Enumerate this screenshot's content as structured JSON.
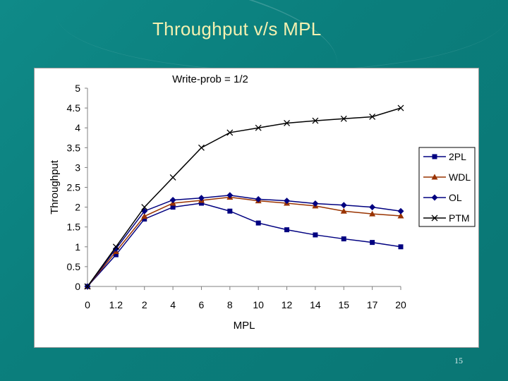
{
  "slide": {
    "title": "Throughput v/s MPL",
    "page_number": "15"
  },
  "colors": {
    "background": "#0b7f7d",
    "title": "#f3f0b0",
    "2PL": "#000080",
    "WDL": "#993300",
    "OL": "#000080",
    "PTM": "#000000"
  },
  "chart_data": {
    "type": "line",
    "title": "Write-prob = 1/2",
    "xlabel": "MPL",
    "ylabel": "Throughput",
    "categories": [
      "0",
      "1.2",
      "2",
      "4",
      "6",
      "8",
      "10",
      "12",
      "14",
      "15",
      "17",
      "20"
    ],
    "ylim": [
      0,
      5
    ],
    "yticks": [
      "0",
      "0.5",
      "1",
      "1.5",
      "2",
      "2.5",
      "3",
      "3.5",
      "4",
      "4.5",
      "5"
    ],
    "grid": false,
    "legend_position": "right",
    "series": [
      {
        "name": "2PL",
        "marker": "square",
        "color": "#000080",
        "values": [
          0,
          0.8,
          1.7,
          2.0,
          2.1,
          1.9,
          1.6,
          1.43,
          1.3,
          1.2,
          1.11,
          1.0
        ]
      },
      {
        "name": "WDL",
        "marker": "triangle",
        "color": "#993300",
        "values": [
          0,
          0.88,
          1.77,
          2.1,
          2.17,
          2.25,
          2.16,
          2.1,
          2.03,
          1.9,
          1.83,
          1.78
        ]
      },
      {
        "name": "OL",
        "marker": "diamond",
        "color": "#000080",
        "values": [
          0,
          0.95,
          1.9,
          2.18,
          2.23,
          2.3,
          2.2,
          2.16,
          2.09,
          2.05,
          2.0,
          1.9
        ]
      },
      {
        "name": "PTM",
        "marker": "x",
        "color": "#000000",
        "values": [
          0,
          1.0,
          2.0,
          2.75,
          3.5,
          3.88,
          4.0,
          4.12,
          4.18,
          4.23,
          4.28,
          4.5
        ]
      }
    ]
  }
}
